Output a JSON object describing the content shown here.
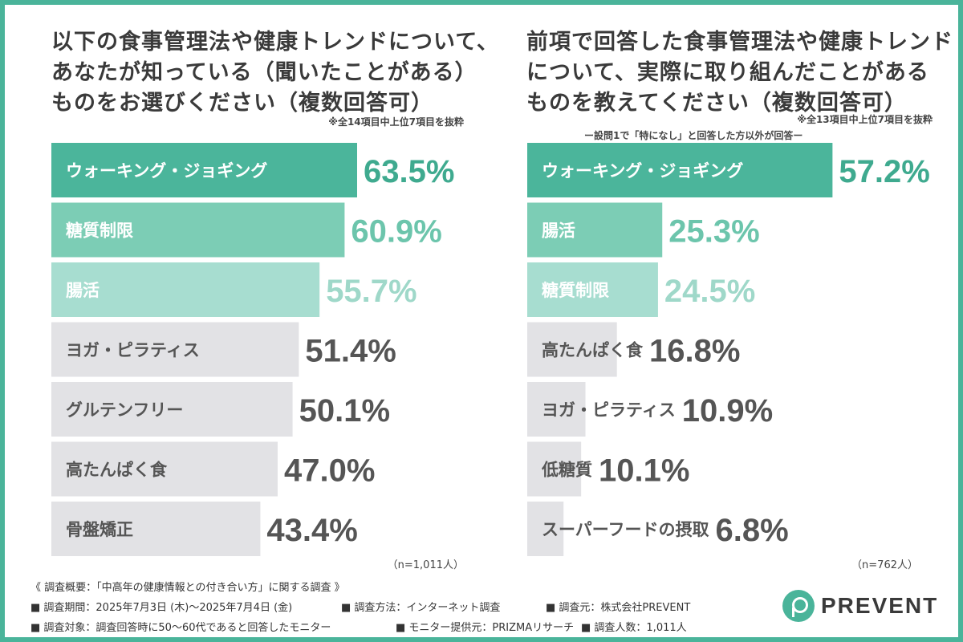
{
  "chart_data": [
    {
      "type": "bar",
      "orientation": "horizontal",
      "title_lines": [
        "以下の食事管理法や健康トレンドについて、",
        "あなたが知っている（聞いたことがある）",
        "ものをお選びください（複数回答可）"
      ],
      "note": "※全14項目中上位7項目を抜粋",
      "subnote": "",
      "categories": [
        "ウォーキング・ジョギング",
        "糖質制限",
        "腸活",
        "ヨガ・ピラティス",
        "グルテンフリー",
        "高たんぱく食",
        "骨盤矯正"
      ],
      "values": [
        63.5,
        60.9,
        55.7,
        51.4,
        50.1,
        47.0,
        43.4
      ],
      "value_labels": [
        "63.5%",
        "60.9%",
        "55.7%",
        "51.4%",
        "50.1%",
        "47.0%",
        "43.4%"
      ],
      "n_label": "（n=1,011人）",
      "colors": {
        "bars": [
          "#4bb59b",
          "#7ccdb5",
          "#a7ddd0",
          "#e2e2e5",
          "#e2e2e5",
          "#e2e2e5",
          "#e2e2e5"
        ],
        "values": [
          "#3faa8f",
          "#6cc5ac",
          "#9fd8c9",
          "#555555",
          "#555555",
          "#555555",
          "#555555"
        ],
        "labels": [
          "#ffffff",
          "#ffffff",
          "#ffffff",
          "#555555",
          "#555555",
          "#555555",
          "#555555"
        ]
      }
    },
    {
      "type": "bar",
      "orientation": "horizontal",
      "title_lines": [
        "前項で回答した食事管理法や健康トレンド",
        "について、実際に取り組んだことがある",
        "ものを教えてください（複数回答可）"
      ],
      "note": "※全13項目中上位7項目を抜粋",
      "subnote": "ー設問1で「特になし」と回答した方以外が回答ー",
      "categories": [
        "ウォーキング・ジョギング",
        "腸活",
        "糖質制限",
        "高たんぱく食",
        "ヨガ・ピラティス",
        "低糖質",
        "スーパーフードの摂取"
      ],
      "values": [
        57.2,
        25.3,
        24.5,
        16.8,
        10.9,
        10.1,
        6.8
      ],
      "value_labels": [
        "57.2%",
        "25.3%",
        "24.5%",
        "16.8%",
        "10.9%",
        "10.1%",
        "6.8%"
      ],
      "n_label": "（n=762人）",
      "colors": {
        "bars": [
          "#4bb59b",
          "#7ccdb5",
          "#a7ddd0",
          "#e2e2e5",
          "#e2e2e5",
          "#e2e2e5",
          "#e2e2e5"
        ],
        "values": [
          "#3faa8f",
          "#6cc5ac",
          "#9fd8c9",
          "#555555",
          "#555555",
          "#555555",
          "#555555"
        ],
        "labels": [
          "#ffffff",
          "#ffffff",
          "#ffffff",
          "#555555",
          "#555555",
          "#555555",
          "#555555"
        ]
      }
    }
  ],
  "footer": {
    "heading": "《 調査概要：「中高年の健康情報との付き合い方」に関する調査 》",
    "period": "■ 調査期間：2025年7月3日 (木)～2025年7月4日 (金)",
    "method": "■ 調査方法：インターネット調査",
    "source": "■ 調査元：株式会社PREVENT",
    "target": "■ 調査対象：調査回答時に50～60代であると回答したモニター",
    "provider": "■ モニター提供元：PRIZMAリサーチ",
    "count": "■ 調査人数：1,011人"
  },
  "logo": {
    "text": "PREVENT",
    "accent": "#4ab49a"
  }
}
